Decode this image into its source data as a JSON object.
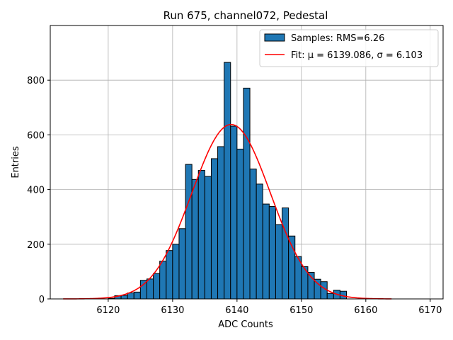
{
  "chart_data": {
    "type": "bar",
    "title": "Run 675, channel072, Pedestal",
    "xlabel": "ADC Counts",
    "ylabel": "Entries",
    "xlim": [
      6111,
      6172
    ],
    "ylim": [
      0,
      1000
    ],
    "xticks": [
      6120,
      6130,
      6140,
      6150,
      6160,
      6170
    ],
    "yticks": [
      0,
      200,
      400,
      600,
      800
    ],
    "grid": true,
    "legend_position": "top-right",
    "colors": {
      "bar_fill": "#1f77b4",
      "bar_edge": "#000000",
      "fit_line": "#ff0000",
      "grid": "#b0b0b0"
    },
    "histogram": {
      "name": "Samples: RMS=6.26",
      "bins": [
        {
          "x": 6120,
          "y": 2
        },
        {
          "x": 6121,
          "y": 12
        },
        {
          "x": 6122,
          "y": 13
        },
        {
          "x": 6123,
          "y": 22
        },
        {
          "x": 6124,
          "y": 25
        },
        {
          "x": 6125,
          "y": 68
        },
        {
          "x": 6126,
          "y": 73
        },
        {
          "x": 6127,
          "y": 93
        },
        {
          "x": 6128,
          "y": 138
        },
        {
          "x": 6129,
          "y": 177
        },
        {
          "x": 6130,
          "y": 200
        },
        {
          "x": 6131,
          "y": 257
        },
        {
          "x": 6132,
          "y": 492
        },
        {
          "x": 6133,
          "y": 437
        },
        {
          "x": 6134,
          "y": 470
        },
        {
          "x": 6135,
          "y": 448
        },
        {
          "x": 6136,
          "y": 513
        },
        {
          "x": 6137,
          "y": 557
        },
        {
          "x": 6138,
          "y": 865
        },
        {
          "x": 6139,
          "y": 632
        },
        {
          "x": 6140,
          "y": 548
        },
        {
          "x": 6141,
          "y": 771
        },
        {
          "x": 6142,
          "y": 475
        },
        {
          "x": 6143,
          "y": 420
        },
        {
          "x": 6144,
          "y": 347
        },
        {
          "x": 6145,
          "y": 338
        },
        {
          "x": 6146,
          "y": 272
        },
        {
          "x": 6147,
          "y": 333
        },
        {
          "x": 6148,
          "y": 230
        },
        {
          "x": 6149,
          "y": 155
        },
        {
          "x": 6150,
          "y": 118
        },
        {
          "x": 6151,
          "y": 97
        },
        {
          "x": 6152,
          "y": 72
        },
        {
          "x": 6153,
          "y": 63
        },
        {
          "x": 6154,
          "y": 20
        },
        {
          "x": 6155,
          "y": 32
        },
        {
          "x": 6156,
          "y": 28
        }
      ]
    },
    "fit": {
      "name": "Fit: μ = 6139.086, σ = 6.103",
      "amplitude": 638,
      "mu": 6139.086,
      "sigma": 6.103,
      "x_range": [
        6113,
        6164
      ]
    }
  }
}
